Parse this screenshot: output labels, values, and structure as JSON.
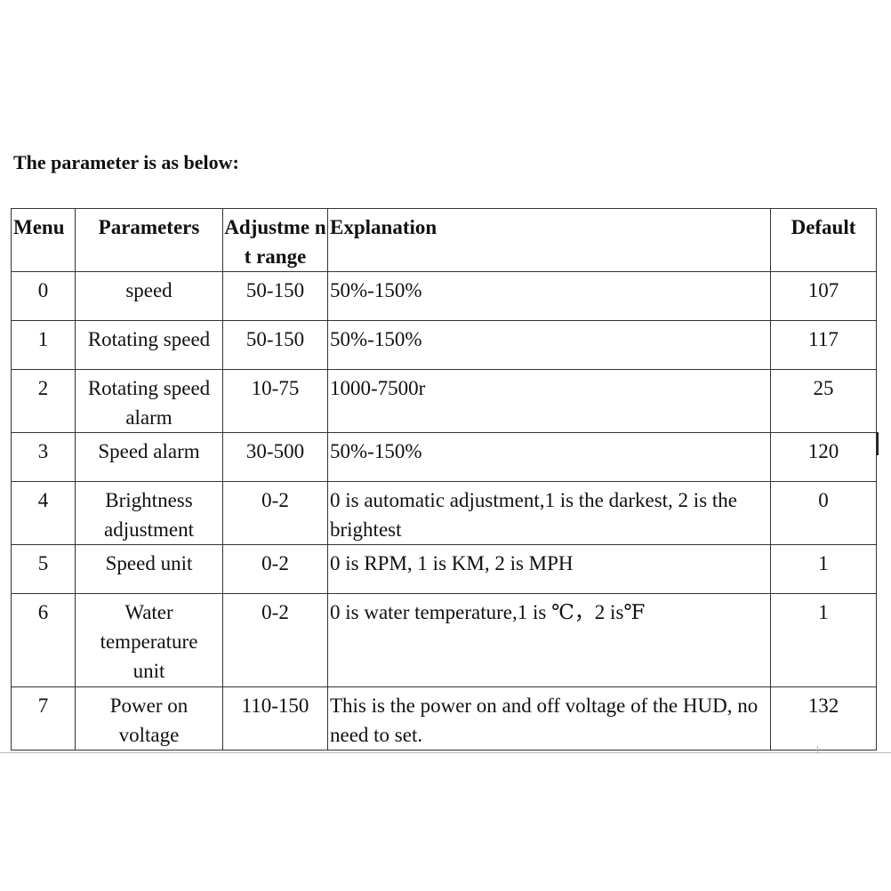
{
  "heading": "The parameter is as below:",
  "table": {
    "headers": [
      "Menu",
      "Parameters",
      "Adjustme nt range",
      "Explanation",
      "Default"
    ],
    "rows": [
      {
        "menu": "0",
        "parameter": "speed",
        "range": "50-150",
        "explanation": "50%-150%",
        "default": "107"
      },
      {
        "menu": "1",
        "parameter": "Rotating speed",
        "range": "50-150",
        "explanation": "50%-150%",
        "default": "117"
      },
      {
        "menu": "2",
        "parameter": "Rotating speed alarm",
        "range": "10-75",
        "explanation": "1000-7500r",
        "default": "25"
      },
      {
        "menu": "3",
        "parameter": "Speed alarm",
        "range": "30-500",
        "explanation": "50%-150%",
        "default": "120"
      },
      {
        "menu": "4",
        "parameter": "Brightness adjustment",
        "range": "0-2",
        "explanation": "0 is automatic adjustment,1 is the darkest, 2 is the brightest",
        "default": "0"
      },
      {
        "menu": "5",
        "parameter": "Speed unit",
        "range": "0-2",
        "explanation": "0 is RPM, 1 is KM, 2 is MPH",
        "default": "1"
      },
      {
        "menu": "6",
        "parameter": "Water temperature unit",
        "range": "0-2",
        "explanation": "0 is water temperature,1 is ℃，2 is℉",
        "default": "1"
      },
      {
        "menu": "7",
        "parameter": "Power on voltage",
        "range": "110-150",
        "explanation": "This is the power on and off voltage of the HUD, no need to set.",
        "default": "132"
      }
    ]
  }
}
